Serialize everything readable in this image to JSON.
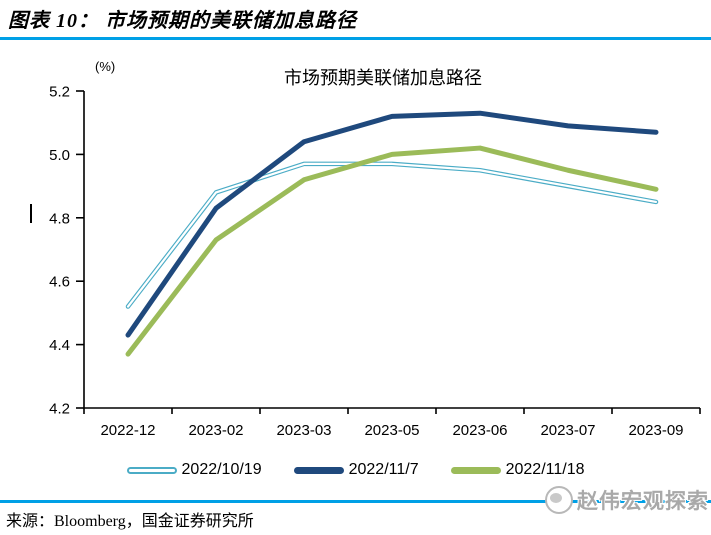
{
  "header": {
    "title": "图表 10：  市场预期的美联储加息路径"
  },
  "chart_data": {
    "type": "line",
    "title": "市场预期美联储加息路径",
    "unit_label": "(%)",
    "categories": [
      "2022-12",
      "2023-02",
      "2023-03",
      "2023-05",
      "2023-06",
      "2023-07",
      "2023-09"
    ],
    "series": [
      {
        "name": "2022/10/19",
        "color": "#4BACC6",
        "style": "double",
        "values": [
          4.52,
          4.88,
          4.97,
          4.97,
          4.95,
          4.9,
          4.85
        ]
      },
      {
        "name": "2022/11/7",
        "color": "#1F497D",
        "style": "solid",
        "values": [
          4.43,
          4.83,
          5.04,
          5.12,
          5.13,
          5.09,
          5.07
        ]
      },
      {
        "name": "2022/11/18",
        "color": "#9BBB59",
        "style": "solid",
        "values": [
          4.37,
          4.73,
          4.92,
          5.0,
          5.02,
          4.95,
          4.89
        ]
      }
    ],
    "ylim": [
      4.2,
      5.2
    ],
    "yticks": [
      "5.2",
      "5.0",
      "4.8",
      "4.6",
      "4.4",
      "4.2"
    ],
    "grid": false,
    "legend_position": "bottom",
    "xlabel": "",
    "ylabel": "(%)"
  },
  "source": {
    "text": "来源：Bloomberg，国金证券研究所"
  },
  "watermark": {
    "text": "赵伟宏观探索"
  },
  "colors": {
    "rule_blue": "#00A0E6",
    "series_light_blue": "#4BACC6",
    "series_navy": "#1F497D",
    "series_green": "#9BBB59"
  }
}
